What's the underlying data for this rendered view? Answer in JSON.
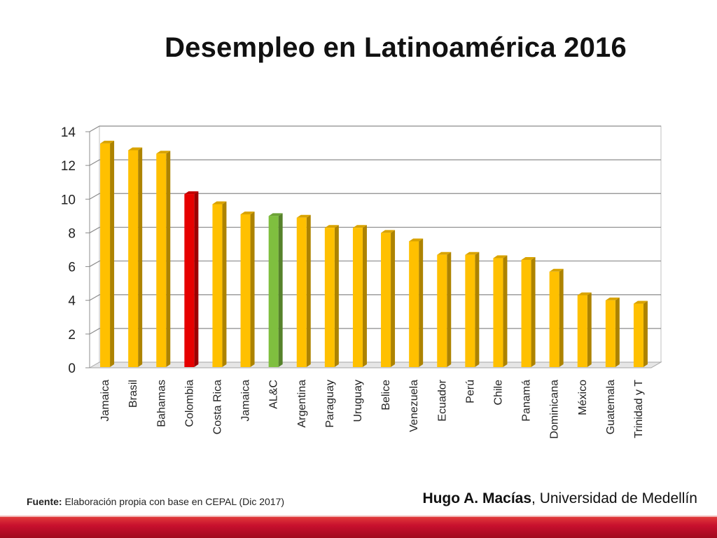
{
  "slide": {
    "title": "Desempleo en Latinoamérica 2016",
    "source_label": "Fuente:",
    "source_text": " Elaboración propia con base en CEPAL (Dic 2017)",
    "author_name": "Hugo A. Macías",
    "author_affiliation": ", Universidad de Medellín"
  },
  "colors": {
    "default_bar": "#FFC000",
    "highlight_bar": "#E60000",
    "aggregate_bar": "#7FBF3F",
    "footer_bar": "#C8102E"
  },
  "chart_data": {
    "type": "bar",
    "categories": [
      "Jamaica",
      "Brasil",
      "Bahamas",
      "Colombia",
      "Costa Rica",
      "Jamaica",
      "AL&C",
      "Argentina",
      "Paraguay",
      "Uruguay",
      "Belice",
      "Venezuela",
      "Ecuador",
      "Perú",
      "Chile",
      "Panamá",
      "Dominicana",
      "México",
      "Guatemala",
      "Trinidad y T"
    ],
    "values": [
      13.3,
      12.9,
      12.7,
      10.3,
      9.7,
      9.1,
      9.0,
      8.9,
      8.3,
      8.3,
      8.0,
      7.5,
      6.7,
      6.7,
      6.5,
      6.4,
      5.7,
      4.3,
      4.0,
      3.8
    ],
    "bar_colors": [
      "default",
      "default",
      "default",
      "highlight",
      "default",
      "default",
      "aggregate",
      "default",
      "default",
      "default",
      "default",
      "default",
      "default",
      "default",
      "default",
      "default",
      "default",
      "default",
      "default",
      "default"
    ],
    "title": "",
    "xlabel": "",
    "ylabel": "",
    "ylim": [
      0,
      14
    ],
    "yticks": [
      0,
      2,
      4,
      6,
      8,
      10,
      12,
      14
    ],
    "grid": true,
    "legend": "none",
    "style": "3d"
  }
}
